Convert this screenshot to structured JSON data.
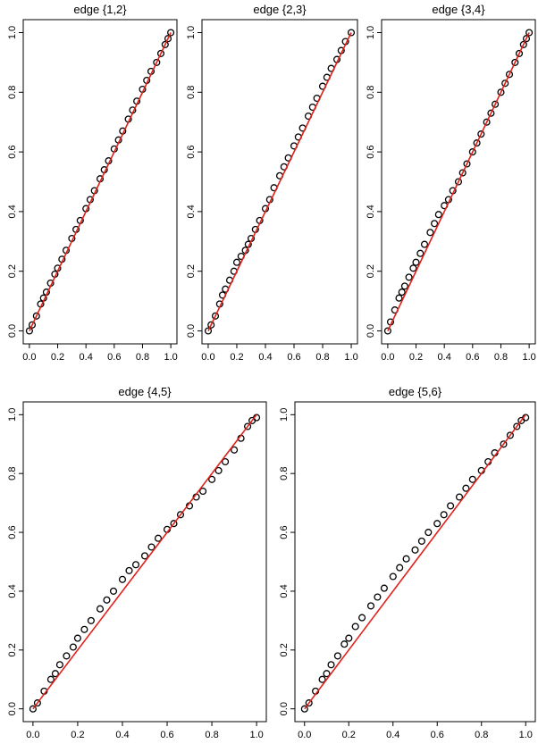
{
  "chart_data": [
    {
      "type": "scatter",
      "title": "edge {1,2}",
      "xlabel": "",
      "ylabel": "",
      "xlim": [
        0,
        1
      ],
      "ylim": [
        0,
        1
      ],
      "xticks": [
        "0.0",
        "0.2",
        "0.4",
        "0.6",
        "0.8",
        "1.0"
      ],
      "yticks": [
        "0.0",
        "0.2",
        "0.4",
        "0.6",
        "0.8",
        "1.0"
      ],
      "grid": false,
      "points_color": "#000000",
      "line_color": "#e0201b",
      "line": {
        "x": [
          0,
          0.25,
          0.5,
          0.75,
          1
        ],
        "y": [
          0,
          0.25,
          0.5,
          0.75,
          1
        ]
      },
      "points": {
        "x": [
          0.0,
          0.02,
          0.05,
          0.08,
          0.1,
          0.12,
          0.15,
          0.18,
          0.2,
          0.23,
          0.26,
          0.3,
          0.33,
          0.36,
          0.4,
          0.43,
          0.46,
          0.5,
          0.53,
          0.56,
          0.6,
          0.63,
          0.66,
          0.7,
          0.73,
          0.76,
          0.8,
          0.83,
          0.86,
          0.9,
          0.93,
          0.96,
          0.98,
          1.0
        ],
        "y": [
          0.0,
          0.02,
          0.05,
          0.09,
          0.11,
          0.13,
          0.16,
          0.19,
          0.21,
          0.24,
          0.27,
          0.31,
          0.34,
          0.37,
          0.41,
          0.44,
          0.47,
          0.51,
          0.54,
          0.57,
          0.61,
          0.64,
          0.67,
          0.71,
          0.74,
          0.77,
          0.81,
          0.84,
          0.87,
          0.9,
          0.93,
          0.96,
          0.98,
          1.0
        ]
      }
    },
    {
      "type": "scatter",
      "title": "edge {2,3}",
      "xlabel": "",
      "ylabel": "",
      "xlim": [
        0,
        1
      ],
      "ylim": [
        0,
        1
      ],
      "xticks": [
        "0.0",
        "0.2",
        "0.4",
        "0.6",
        "0.8",
        "1.0"
      ],
      "yticks": [
        "0.0",
        "0.2",
        "0.4",
        "0.6",
        "0.8",
        "1.0"
      ],
      "grid": false,
      "points_color": "#000000",
      "line_color": "#e0201b",
      "line": {
        "x": [
          0,
          0.25,
          0.5,
          0.75,
          1
        ],
        "y": [
          0,
          0.25,
          0.5,
          0.75,
          1
        ]
      },
      "points": {
        "x": [
          0.0,
          0.02,
          0.05,
          0.08,
          0.1,
          0.12,
          0.15,
          0.18,
          0.2,
          0.23,
          0.26,
          0.28,
          0.3,
          0.33,
          0.36,
          0.4,
          0.43,
          0.46,
          0.5,
          0.53,
          0.56,
          0.6,
          0.63,
          0.66,
          0.7,
          0.73,
          0.76,
          0.8,
          0.83,
          0.86,
          0.9,
          0.93,
          0.96,
          1.0
        ],
        "y": [
          0.0,
          0.02,
          0.05,
          0.09,
          0.12,
          0.14,
          0.17,
          0.2,
          0.23,
          0.25,
          0.27,
          0.29,
          0.31,
          0.34,
          0.37,
          0.41,
          0.44,
          0.48,
          0.52,
          0.55,
          0.58,
          0.62,
          0.65,
          0.68,
          0.72,
          0.75,
          0.78,
          0.82,
          0.85,
          0.88,
          0.91,
          0.94,
          0.97,
          1.0
        ]
      }
    },
    {
      "type": "scatter",
      "title": "edge {3,4}",
      "xlabel": "",
      "ylabel": "",
      "xlim": [
        0,
        1
      ],
      "ylim": [
        0,
        1
      ],
      "xticks": [
        "0.0",
        "0.2",
        "0.4",
        "0.6",
        "0.8",
        "1.0"
      ],
      "yticks": [
        "0.0",
        "0.2",
        "0.4",
        "0.6",
        "0.8",
        "1.0"
      ],
      "grid": false,
      "points_color": "#000000",
      "line_color": "#e0201b",
      "line": {
        "x": [
          0,
          0.25,
          0.5,
          0.75,
          1
        ],
        "y": [
          0,
          0.25,
          0.5,
          0.75,
          1
        ]
      },
      "points": {
        "x": [
          0.0,
          0.02,
          0.05,
          0.08,
          0.1,
          0.12,
          0.15,
          0.18,
          0.2,
          0.23,
          0.26,
          0.3,
          0.33,
          0.36,
          0.4,
          0.43,
          0.46,
          0.5,
          0.53,
          0.56,
          0.6,
          0.63,
          0.66,
          0.7,
          0.73,
          0.76,
          0.8,
          0.83,
          0.86,
          0.9,
          0.93,
          0.96,
          0.98,
          1.0
        ],
        "y": [
          0.0,
          0.03,
          0.07,
          0.11,
          0.13,
          0.15,
          0.18,
          0.21,
          0.23,
          0.26,
          0.29,
          0.33,
          0.36,
          0.39,
          0.42,
          0.44,
          0.47,
          0.5,
          0.53,
          0.56,
          0.6,
          0.63,
          0.66,
          0.7,
          0.73,
          0.76,
          0.8,
          0.83,
          0.86,
          0.9,
          0.93,
          0.96,
          0.98,
          1.0
        ]
      }
    },
    {
      "type": "scatter",
      "title": "edge {4,5}",
      "xlabel": "",
      "ylabel": "",
      "xlim": [
        0,
        1
      ],
      "ylim": [
        0,
        1
      ],
      "xticks": [
        "0.0",
        "0.2",
        "0.4",
        "0.6",
        "0.8",
        "1.0"
      ],
      "yticks": [
        "0.0",
        "0.2",
        "0.4",
        "0.6",
        "0.8",
        "1.0"
      ],
      "grid": false,
      "points_color": "#000000",
      "line_color": "#e0201b",
      "line": {
        "x": [
          0,
          0.25,
          0.5,
          0.75,
          1
        ],
        "y": [
          0,
          0.25,
          0.5,
          0.75,
          1
        ]
      },
      "points": {
        "x": [
          0.0,
          0.02,
          0.05,
          0.08,
          0.1,
          0.12,
          0.15,
          0.18,
          0.2,
          0.23,
          0.26,
          0.3,
          0.33,
          0.36,
          0.4,
          0.43,
          0.46,
          0.5,
          0.53,
          0.56,
          0.6,
          0.63,
          0.66,
          0.7,
          0.73,
          0.76,
          0.8,
          0.83,
          0.86,
          0.9,
          0.93,
          0.96,
          0.98,
          1.0
        ],
        "y": [
          0.0,
          0.02,
          0.06,
          0.1,
          0.12,
          0.15,
          0.18,
          0.21,
          0.24,
          0.27,
          0.3,
          0.34,
          0.37,
          0.4,
          0.44,
          0.47,
          0.49,
          0.52,
          0.55,
          0.58,
          0.61,
          0.63,
          0.66,
          0.69,
          0.72,
          0.74,
          0.78,
          0.81,
          0.84,
          0.88,
          0.92,
          0.96,
          0.98,
          0.99
        ]
      }
    },
    {
      "type": "scatter",
      "title": "edge {5,6}",
      "xlabel": "",
      "ylabel": "",
      "xlim": [
        0,
        1
      ],
      "ylim": [
        0,
        1
      ],
      "xticks": [
        "0.0",
        "0.2",
        "0.4",
        "0.6",
        "0.8",
        "1.0"
      ],
      "yticks": [
        "0.0",
        "0.2",
        "0.4",
        "0.6",
        "0.8",
        "1.0"
      ],
      "grid": false,
      "points_color": "#000000",
      "line_color": "#e0201b",
      "line": {
        "x": [
          0,
          0.25,
          0.5,
          0.75,
          1
        ],
        "y": [
          0,
          0.25,
          0.5,
          0.75,
          1
        ]
      },
      "points": {
        "x": [
          0.0,
          0.02,
          0.05,
          0.08,
          0.1,
          0.12,
          0.15,
          0.18,
          0.2,
          0.23,
          0.26,
          0.3,
          0.33,
          0.36,
          0.4,
          0.43,
          0.46,
          0.5,
          0.53,
          0.56,
          0.6,
          0.63,
          0.66,
          0.7,
          0.73,
          0.76,
          0.8,
          0.83,
          0.86,
          0.9,
          0.93,
          0.96,
          0.98,
          1.0
        ],
        "y": [
          0.0,
          0.02,
          0.06,
          0.1,
          0.12,
          0.15,
          0.18,
          0.22,
          0.24,
          0.28,
          0.31,
          0.35,
          0.38,
          0.41,
          0.45,
          0.48,
          0.51,
          0.54,
          0.57,
          0.6,
          0.63,
          0.66,
          0.69,
          0.72,
          0.75,
          0.78,
          0.81,
          0.84,
          0.87,
          0.9,
          0.93,
          0.96,
          0.98,
          0.99
        ]
      }
    }
  ]
}
